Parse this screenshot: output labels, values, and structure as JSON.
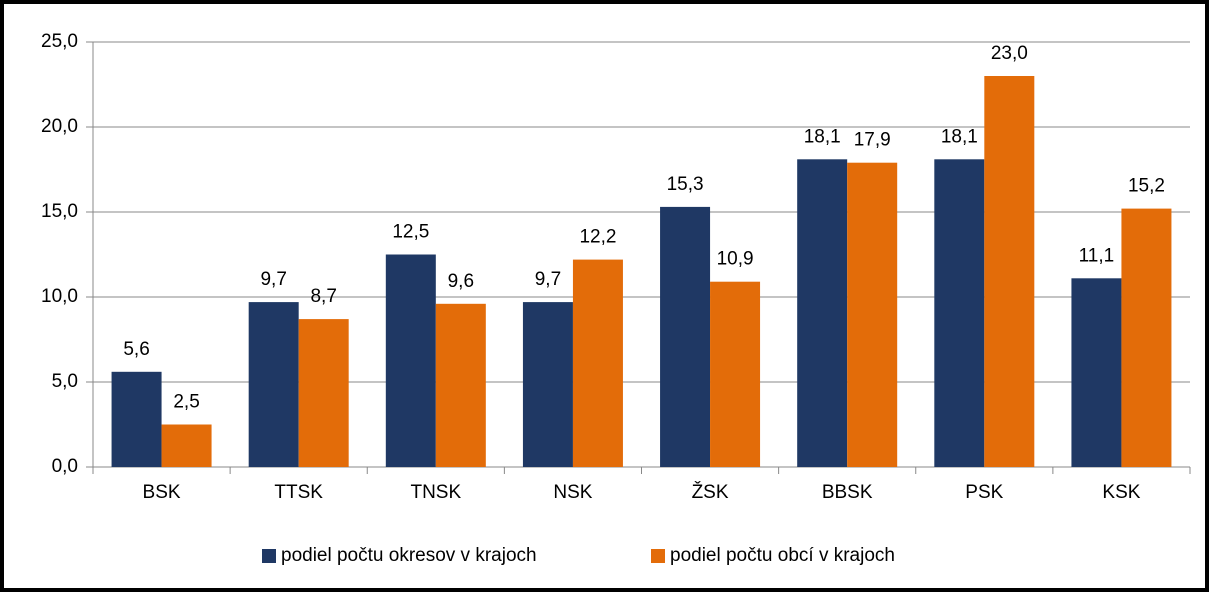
{
  "chart_data": {
    "type": "bar",
    "categories": [
      "BSK",
      "TTSK",
      "TNSK",
      "NSK",
      "ŽSK",
      "BBSK",
      "PSK",
      "KSK"
    ],
    "series": [
      {
        "name": "podiel počtu okresov v krajoch",
        "color": "#1f3864",
        "values": [
          5.6,
          9.7,
          12.5,
          9.7,
          15.3,
          18.1,
          18.1,
          11.1
        ],
        "value_labels": [
          "5,6",
          "9,7",
          "12,5",
          "9,7",
          "15,3",
          "18,1",
          "18,1",
          "11,1"
        ]
      },
      {
        "name": "podiel počtu obcí v krajoch",
        "color": "#e36c09",
        "values": [
          2.5,
          8.7,
          9.6,
          12.2,
          10.9,
          17.9,
          23.0,
          15.2
        ],
        "value_labels": [
          "2,5",
          "8,7",
          "9,6",
          "12,2",
          "10,9",
          "17,9",
          "23,0",
          "15,2"
        ]
      }
    ],
    "ylim": [
      0,
      25
    ],
    "yticks": [
      {
        "value": 0,
        "label": "0,0"
      },
      {
        "value": 5,
        "label": "5,0"
      },
      {
        "value": 10,
        "label": "10,0"
      },
      {
        "value": 15,
        "label": "15,0"
      },
      {
        "value": 20,
        "label": "20,0"
      },
      {
        "value": 25,
        "label": "25,0"
      }
    ],
    "grid": true,
    "legend": "bottom"
  }
}
